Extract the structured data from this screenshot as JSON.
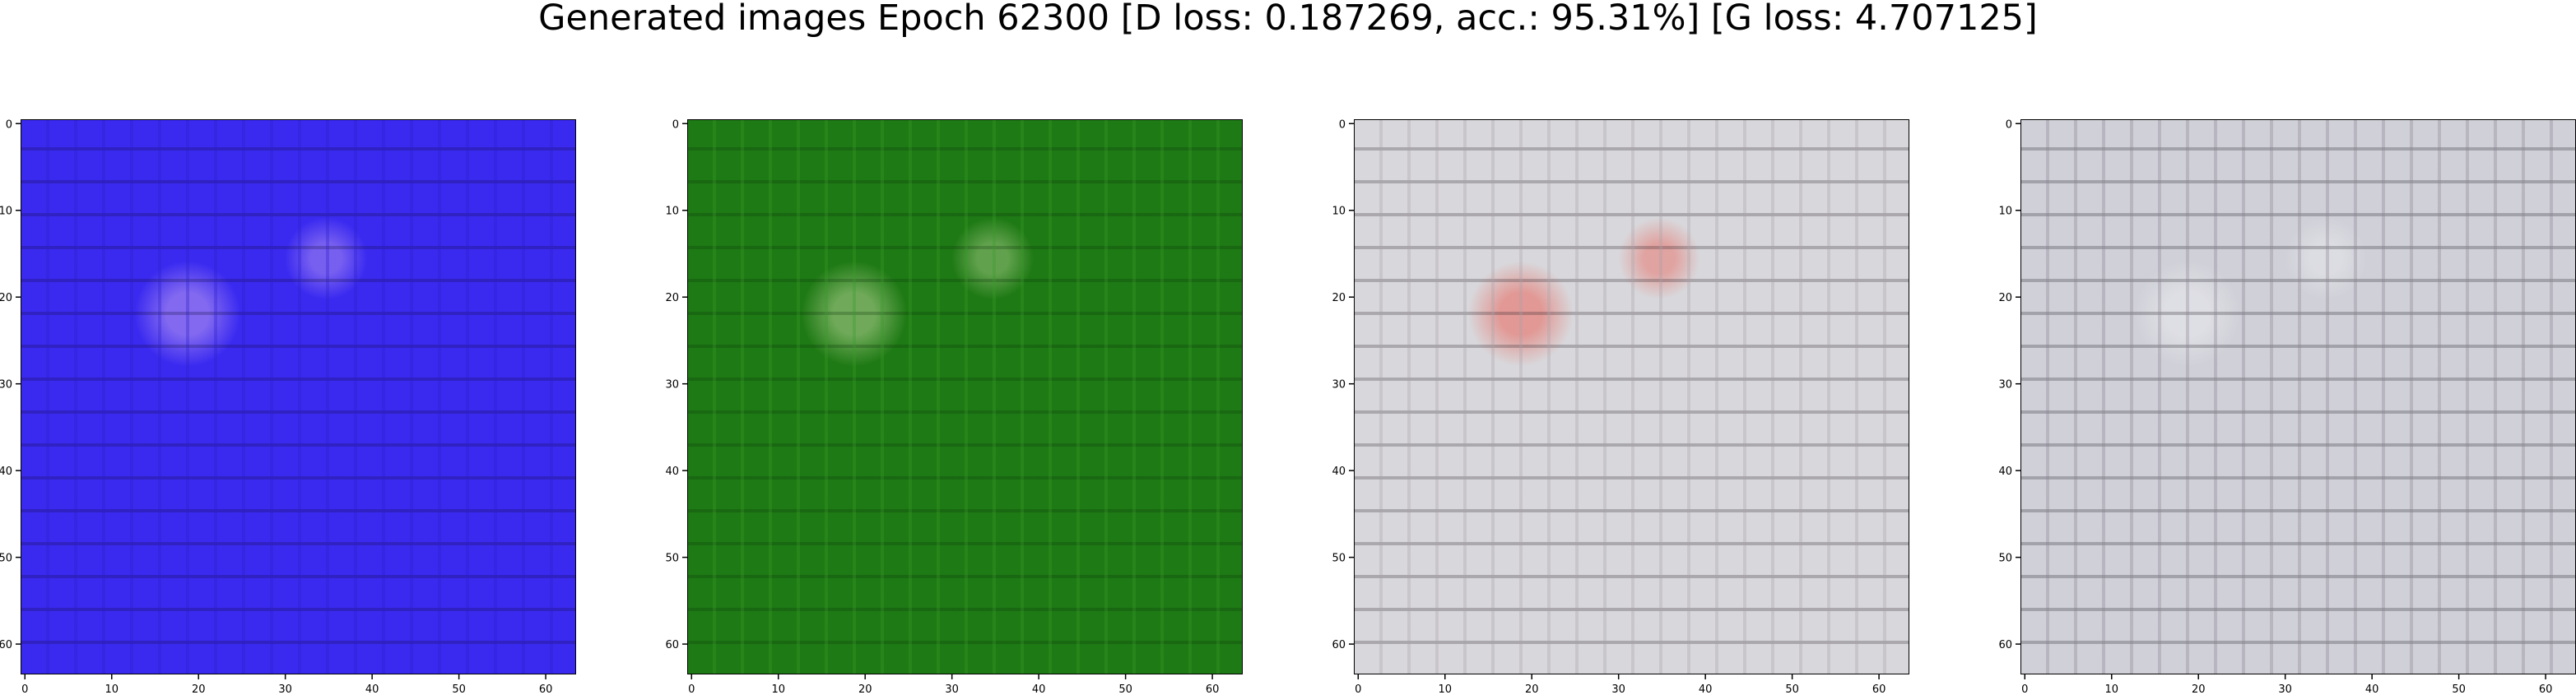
{
  "figure": {
    "title": "Generated images Epoch 62300 [D loss: 0.187269, acc.: 95.31%] [G loss: 4.707125]"
  },
  "axes": {
    "x_ticks": [
      "0",
      "10",
      "20",
      "30",
      "40",
      "50",
      "60"
    ],
    "y_ticks": [
      "0",
      "10",
      "20",
      "30",
      "40",
      "50",
      "60"
    ],
    "x_range": [
      0,
      64
    ],
    "y_range": [
      0,
      64
    ]
  },
  "panels": [
    {
      "dominant_color": "#3a2af0",
      "highlight": "#f0c8f0",
      "dark": "#10083a",
      "grid": "#2a1ec8"
    },
    {
      "dominant_color": "#1e7a14",
      "highlight": "#e8f0c0",
      "dark": "#0a300a",
      "grid": "#3a9a2a"
    },
    {
      "dominant_color": "#d8d8dc",
      "highlight": "#f03a2a",
      "dark": "#201820",
      "grid": "#a8a0a8"
    },
    {
      "dominant_color": "#d0d0d8",
      "highlight": "#f4f4f8",
      "dark": "#1a1820",
      "grid": "#8a8090"
    }
  ]
}
